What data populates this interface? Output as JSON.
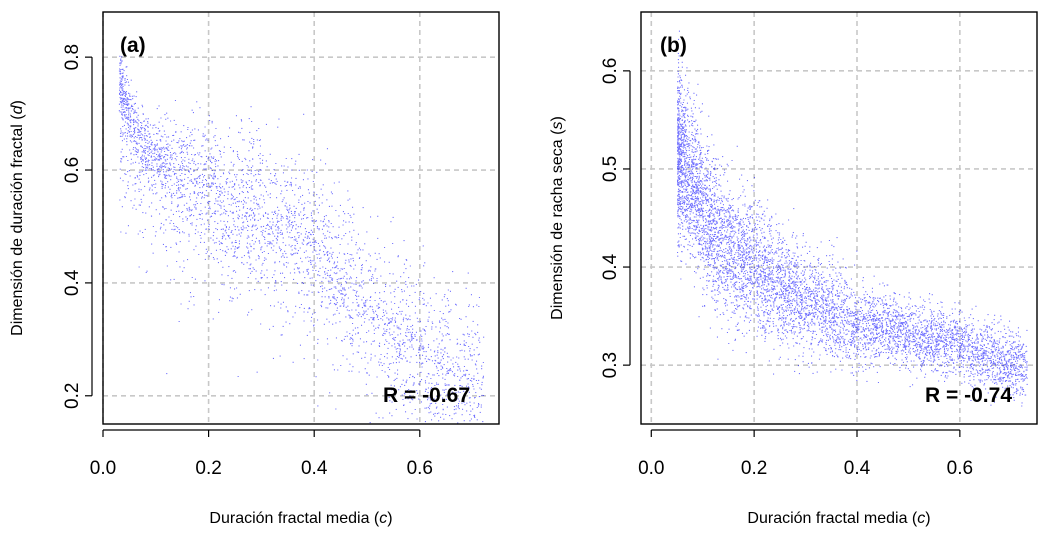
{
  "chart_data": [
    {
      "type": "scatter",
      "panel_label": "(a)",
      "annotation": "R = -0.67",
      "xlabel": "Duración fractal media (c)",
      "ylabel": "Dimensión de duración fractal  (d)",
      "xlim": [
        0.0,
        0.75
      ],
      "ylim": [
        0.15,
        0.88
      ],
      "x_ticks": [
        "0.0",
        "0.2",
        "0.4",
        "0.6"
      ],
      "y_ticks": [
        "0.2",
        "0.4",
        "0.6",
        "0.8"
      ],
      "grid": true,
      "point_color": "#0000ff",
      "correlation": -0.67,
      "series": [
        {
          "x": [
            0.03,
            0.05,
            0.07,
            0.1,
            0.13,
            0.16,
            0.2,
            0.23,
            0.26,
            0.3,
            0.34,
            0.38,
            0.42,
            0.46,
            0.5,
            0.55,
            0.6,
            0.65,
            0.7,
            0.72
          ],
          "y": [
            0.76,
            0.7,
            0.66,
            0.63,
            0.62,
            0.6,
            0.58,
            0.57,
            0.55,
            0.54,
            0.52,
            0.5,
            0.46,
            0.42,
            0.38,
            0.34,
            0.3,
            0.27,
            0.24,
            0.22
          ]
        }
      ]
    },
    {
      "type": "scatter",
      "panel_label": "(b)",
      "annotation": "R = -0.74",
      "xlabel": "Duración fractal media (c)",
      "ylabel": "Dimensión de racha seca (s)",
      "xlim": [
        -0.02,
        0.75
      ],
      "ylim": [
        0.24,
        0.66
      ],
      "x_ticks": [
        "0.0",
        "0.2",
        "0.4",
        "0.6"
      ],
      "y_ticks": [
        "0.3",
        "0.4",
        "0.5",
        "0.6"
      ],
      "grid": true,
      "point_color": "#0000ff",
      "correlation": -0.74,
      "series": [
        {
          "x": [
            0.05,
            0.08,
            0.1,
            0.13,
            0.16,
            0.2,
            0.24,
            0.28,
            0.32,
            0.36,
            0.4,
            0.45,
            0.5,
            0.55,
            0.6,
            0.65,
            0.7,
            0.73
          ],
          "y": [
            0.52,
            0.49,
            0.46,
            0.43,
            0.41,
            0.4,
            0.38,
            0.37,
            0.36,
            0.35,
            0.34,
            0.34,
            0.33,
            0.325,
            0.32,
            0.31,
            0.3,
            0.3
          ]
        }
      ]
    }
  ]
}
